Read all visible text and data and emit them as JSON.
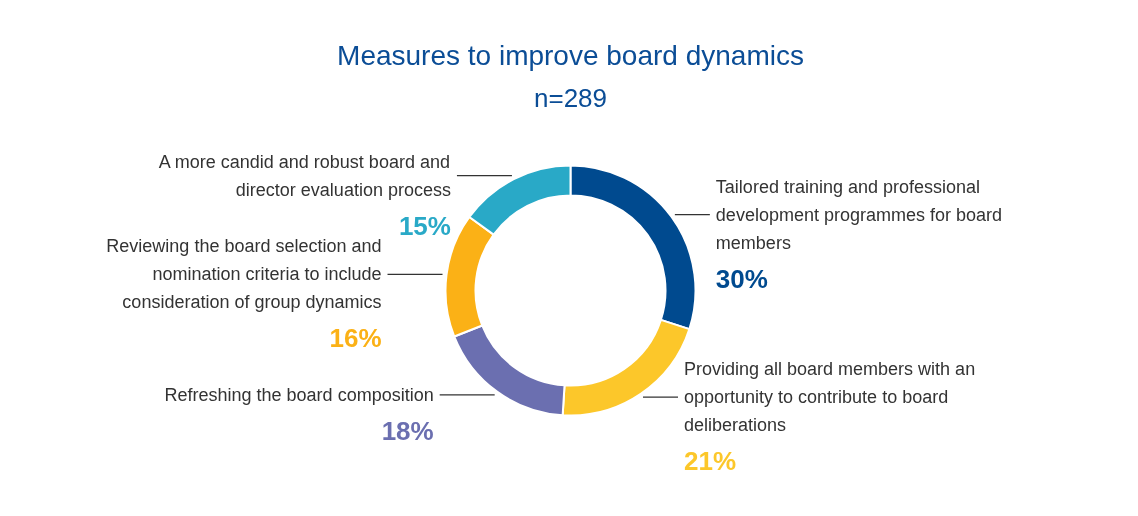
{
  "chart_data": {
    "type": "donut",
    "title": "Measures to improve board dynamics",
    "subtitle": "n=289",
    "categories": [
      "Tailored training and professional development programmes for board members",
      "Providing all board members with an opportunity to contribute to board deliberations",
      "Refreshing the board composition",
      "Reviewing the board selection and nomination criteria to include consideration of group dynamics",
      "A more candid and robust board and director evaluation process"
    ],
    "values": [
      30,
      21,
      18,
      16,
      15
    ],
    "colors": [
      "#004a8f",
      "#fcc72a",
      "#6b6fb0",
      "#fbb116",
      "#29a9c7"
    ],
    "value_labels": [
      "30%",
      "21%",
      "18%",
      "16%",
      "15%"
    ]
  }
}
